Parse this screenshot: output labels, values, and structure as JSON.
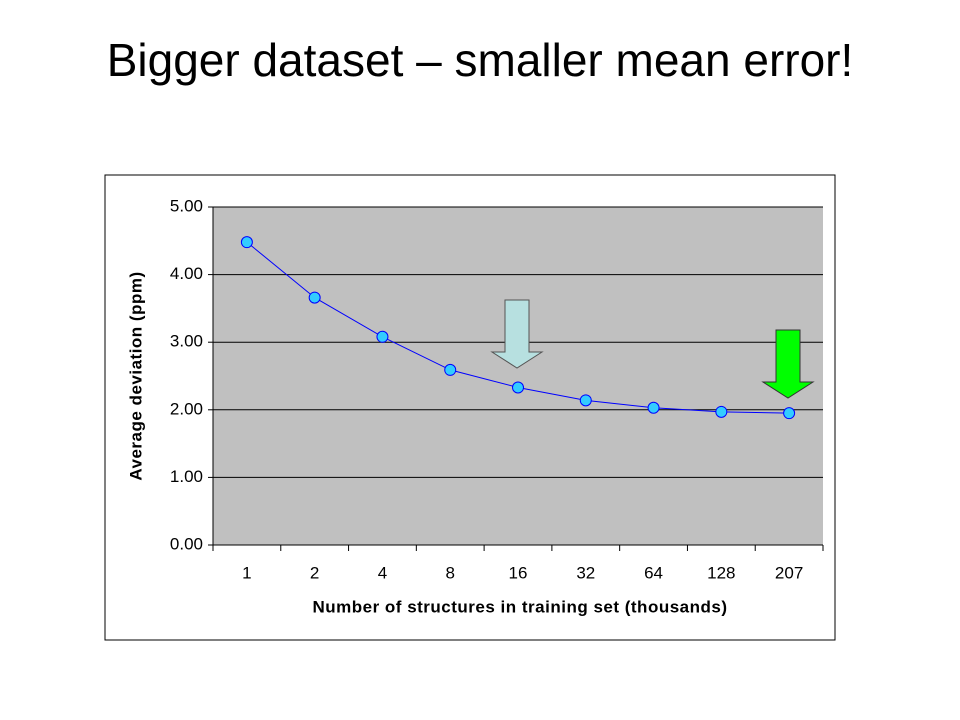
{
  "chart_data": {
    "type": "line",
    "title": "Bigger dataset – smaller mean error!",
    "x_label": "Number of structures in training set (thousands)",
    "y_label": "Average deviation (ppm)",
    "categories": [
      "1",
      "2",
      "4",
      "8",
      "16",
      "32",
      "64",
      "128",
      "207"
    ],
    "values": [
      4.48,
      3.66,
      3.08,
      2.59,
      2.33,
      2.14,
      2.03,
      1.97,
      1.95
    ],
    "color": "#0000ff",
    "marker_color": "#33ccff",
    "ylim": [
      0,
      5
    ],
    "yticks": [
      {
        "value": 0,
        "label": "0.00"
      },
      {
        "value": 1,
        "label": "1.00"
      },
      {
        "value": 2,
        "label": "2.00"
      },
      {
        "value": 3,
        "label": "3.00"
      },
      {
        "value": 4,
        "label": "4.00"
      },
      {
        "value": 5,
        "label": "5.00"
      }
    ],
    "grid": true
  }
}
